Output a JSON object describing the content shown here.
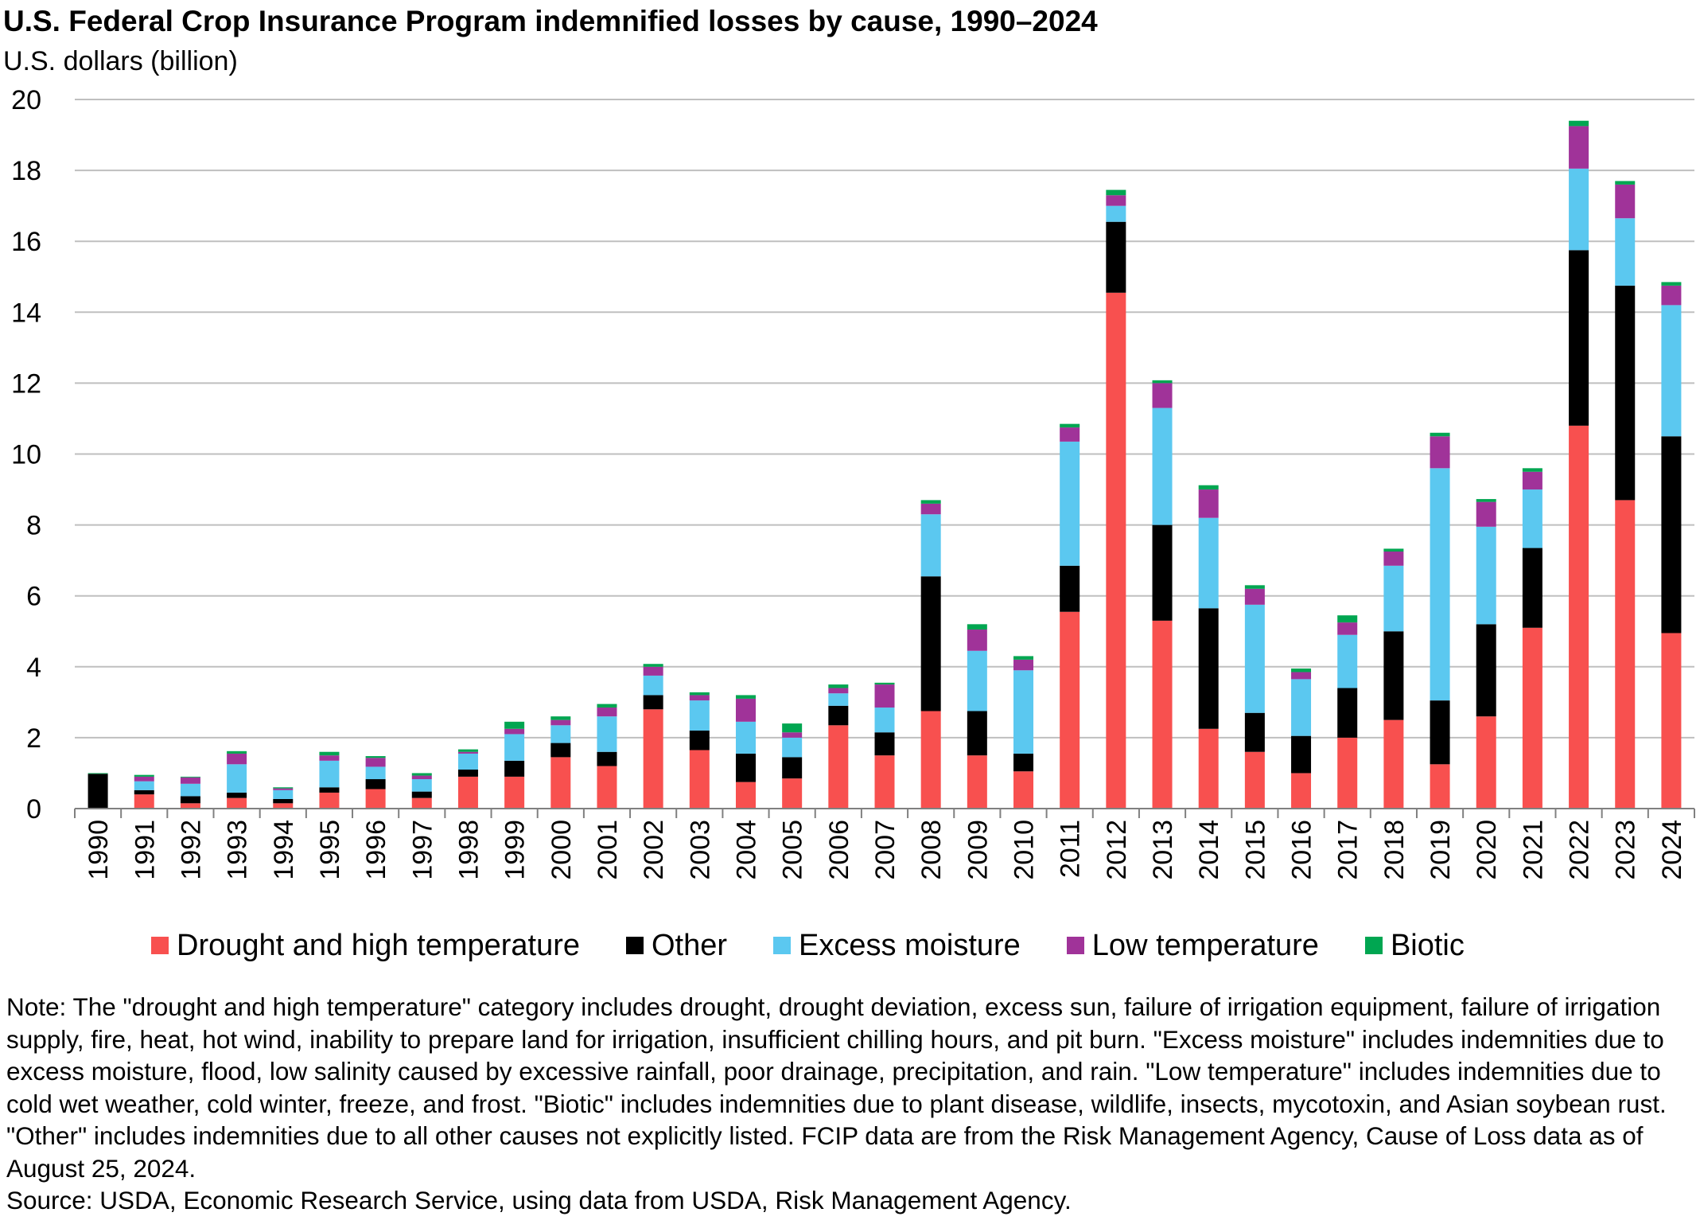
{
  "title": "U.S. Federal Crop Insurance Program indemnified losses by cause, 1990–2024",
  "unit_label": "U.S. dollars (billion)",
  "note": "Note: The \"drought and high temperature\" category includes drought, drought deviation, excess sun, failure of irrigation equipment, failure of irrigation supply, fire, heat, hot wind, inability to prepare land for irrigation, insufficient chilling hours, and pit burn. \"Excess moisture\" includes indemnities due to excess moisture, flood, low salinity caused by excessive rainfall, poor drainage, precipitation, and rain. \"Low temperature\" includes indemnities due to cold wet weather, cold winter, freeze, and frost. \"Biotic\" includes indemnities due to plant disease, wildlife, insects, mycotoxin, and Asian soybean rust. \"Other\" includes indemnities due to all other causes not explicitly listed. FCIP data are from the Risk Management Agency, Cause of Loss data as of August 25, 2024.",
  "source": "Source: USDA, Economic Research Service, using data from USDA, Risk Management Agency.",
  "colors": {
    "drought": "#f8504f",
    "other": "#000000",
    "excess": "#5bc8f0",
    "low": "#a03399",
    "biotic": "#00a651",
    "grid": "#bfbfbf",
    "axis": "#808080"
  },
  "chart_data": {
    "type": "bar",
    "stacked": true,
    "title": "U.S. Federal Crop Insurance Program indemnified losses by cause, 1990–2024",
    "ylabel": "U.S. dollars (billion)",
    "xlabel": "",
    "ylim": [
      0,
      20
    ],
    "yticks": [
      0,
      2,
      4,
      6,
      8,
      10,
      12,
      14,
      16,
      18,
      20
    ],
    "grid": true,
    "legend_position": "bottom",
    "categories": [
      "1990",
      "1991",
      "1992",
      "1993",
      "1994",
      "1995",
      "1996",
      "1997",
      "1998",
      "1999",
      "2000",
      "2001",
      "2002",
      "2003",
      "2004",
      "2005",
      "2006",
      "2007",
      "2008",
      "2009",
      "2010",
      "2011",
      "2012",
      "2013",
      "2014",
      "2015",
      "2016",
      "2017",
      "2018",
      "2019",
      "2020",
      "2021",
      "2022",
      "2023",
      "2024"
    ],
    "series": [
      {
        "key": "drought",
        "name": "Drought and high temperature",
        "values": [
          0.0,
          0.4,
          0.15,
          0.3,
          0.15,
          0.45,
          0.55,
          0.3,
          0.9,
          0.9,
          1.45,
          1.2,
          2.8,
          1.65,
          0.75,
          0.85,
          2.35,
          1.5,
          2.75,
          1.5,
          1.05,
          5.55,
          14.55,
          5.3,
          2.25,
          1.6,
          1.0,
          2.0,
          2.5,
          1.25,
          2.6,
          5.1,
          10.8,
          8.7,
          4.95
        ]
      },
      {
        "key": "other",
        "name": "Other",
        "values": [
          0.98,
          0.12,
          0.2,
          0.15,
          0.12,
          0.15,
          0.28,
          0.18,
          0.2,
          0.45,
          0.4,
          0.4,
          0.4,
          0.55,
          0.8,
          0.6,
          0.55,
          0.65,
          3.8,
          1.25,
          0.5,
          1.3,
          2.0,
          2.7,
          3.4,
          1.1,
          1.05,
          1.4,
          2.5,
          1.8,
          2.6,
          2.25,
          4.95,
          6.05,
          5.55
        ]
      },
      {
        "key": "excess",
        "name": "Excess moisture",
        "values": [
          0.0,
          0.25,
          0.35,
          0.8,
          0.25,
          0.75,
          0.35,
          0.35,
          0.45,
          0.75,
          0.5,
          1.0,
          0.55,
          0.85,
          0.9,
          0.55,
          0.35,
          0.7,
          1.75,
          1.7,
          2.35,
          3.5,
          0.45,
          3.3,
          2.55,
          3.05,
          1.6,
          1.5,
          1.85,
          6.55,
          2.75,
          1.65,
          2.3,
          1.9,
          3.7
        ]
      },
      {
        "key": "low",
        "name": "Low temperature",
        "values": [
          0.0,
          0.13,
          0.18,
          0.3,
          0.05,
          0.15,
          0.25,
          0.1,
          0.05,
          0.15,
          0.15,
          0.25,
          0.25,
          0.15,
          0.65,
          0.15,
          0.15,
          0.65,
          0.3,
          0.6,
          0.3,
          0.4,
          0.3,
          0.7,
          0.8,
          0.45,
          0.2,
          0.35,
          0.4,
          0.9,
          0.7,
          0.5,
          1.2,
          0.95,
          0.55
        ]
      },
      {
        "key": "biotic",
        "name": "Biotic",
        "values": [
          0.02,
          0.05,
          0.02,
          0.07,
          0.03,
          0.1,
          0.05,
          0.07,
          0.07,
          0.2,
          0.1,
          0.1,
          0.08,
          0.08,
          0.1,
          0.25,
          0.1,
          0.05,
          0.1,
          0.15,
          0.1,
          0.1,
          0.15,
          0.08,
          0.12,
          0.1,
          0.1,
          0.2,
          0.08,
          0.1,
          0.08,
          0.1,
          0.15,
          0.1,
          0.1
        ]
      }
    ]
  }
}
